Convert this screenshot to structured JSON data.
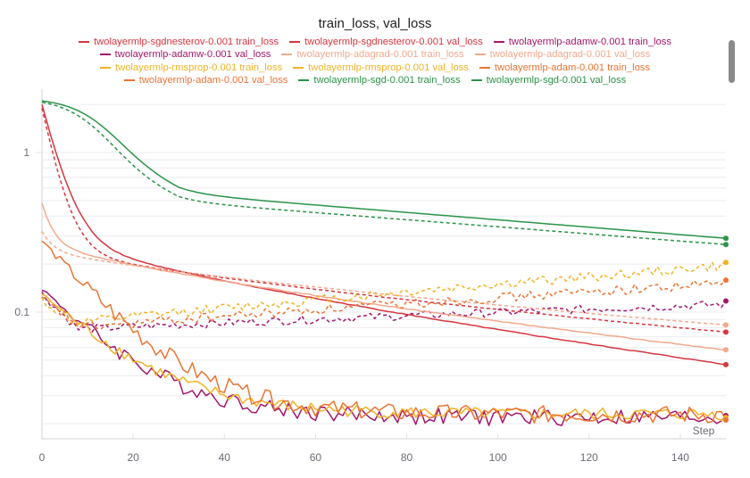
{
  "chart_data": {
    "type": "line",
    "title": "train_loss, val_loss",
    "xlabel": "Step",
    "ylabel": "",
    "yscale": "log",
    "xlim": [
      0,
      150
    ],
    "ylim": [
      0.0165,
      2.2
    ],
    "grid": true,
    "legend_position": "top",
    "x_ticks": [
      0,
      20,
      40,
      60,
      80,
      100,
      120,
      140
    ],
    "x_tick_labels": [
      "0",
      "20",
      "40",
      "60",
      "80",
      "100",
      "120",
      "140"
    ],
    "y_ticks": [
      1,
      0.1
    ],
    "y_tick_labels": [
      "1",
      "0.1"
    ],
    "y_minor_grid": [
      2,
      0.9,
      0.8,
      0.7,
      0.6,
      0.5,
      0.4,
      0.3,
      0.2,
      0.09,
      0.08,
      0.07,
      0.06,
      0.05,
      0.04,
      0.03,
      0.02
    ],
    "series": [
      {
        "name": "twolayermlp-sgdnesterov-0.001 train_loss",
        "color": "#d6363f",
        "dash": false,
        "model": {
          "kind": "decay",
          "start": 2.0,
          "fast": 0.3,
          "fast_tau": 3.5,
          "slow_start": 0.32,
          "slow_end": 0.047,
          "noise": 0.01
        }
      },
      {
        "name": "twolayermlp-sgdnesterov-0.001 val_loss",
        "color": "#d6363f",
        "dash": true,
        "model": {
          "kind": "decay",
          "start": 1.9,
          "fast": 0.28,
          "fast_tau": 3.0,
          "slow_start": 0.26,
          "slow_end": 0.075,
          "noise": 0.005
        }
      },
      {
        "name": "twolayermlp-adamw-0.001 train_loss",
        "color": "#a3166b",
        "dash": false,
        "model": {
          "kind": "noisy_decay",
          "start": 0.14,
          "floor": 0.022,
          "tau": 14,
          "noise": 0.12,
          "seed": 3
        }
      },
      {
        "name": "twolayermlp-adamw-0.001 val_loss",
        "color": "#a3166b",
        "dash": true,
        "model": {
          "kind": "overfit",
          "start": 0.13,
          "min": 0.078,
          "min_at": 8,
          "end": 0.112,
          "noise": 0.06,
          "seed": 5
        }
      },
      {
        "name": "twolayermlp-adagrad-0.001 train_loss",
        "color": "#f2a98c",
        "dash": false,
        "model": {
          "kind": "decay",
          "start": 0.48,
          "fast": 0.18,
          "fast_tau": 2.0,
          "slow_start": 0.28,
          "slow_end": 0.058,
          "noise": 0.012
        }
      },
      {
        "name": "twolayermlp-adagrad-0.001 val_loss",
        "color": "#f2a98c",
        "dash": true,
        "model": {
          "kind": "decay",
          "start": 0.32,
          "fast": 0.07,
          "fast_tau": 2.0,
          "slow_start": 0.25,
          "slow_end": 0.083,
          "noise": 0.004
        }
      },
      {
        "name": "twolayermlp-rmsprop-0.001 train_loss",
        "color": "#f0b323",
        "dash": false,
        "model": {
          "kind": "noisy_decay",
          "start": 0.13,
          "floor": 0.023,
          "tau": 15,
          "noise": 0.09,
          "seed": 7
        }
      },
      {
        "name": "twolayermlp-rmsprop-0.001 val_loss",
        "color": "#f0b323",
        "dash": true,
        "model": {
          "kind": "overfit",
          "start": 0.12,
          "min": 0.085,
          "min_at": 7,
          "end": 0.195,
          "noise": 0.07,
          "seed": 11
        }
      },
      {
        "name": "twolayermlp-adam-0.001 train_loss",
        "color": "#ea7433",
        "dash": false,
        "model": {
          "kind": "noisy_decay",
          "start": 0.28,
          "floor": 0.023,
          "tau": 13,
          "noise": 0.13,
          "seed": 13
        }
      },
      {
        "name": "twolayermlp-adam-0.001 val_loss",
        "color": "#ea7433",
        "dash": true,
        "model": {
          "kind": "overfit",
          "start": 0.12,
          "min": 0.08,
          "min_at": 9,
          "end": 0.152,
          "noise": 0.07,
          "seed": 17
        }
      },
      {
        "name": "twolayermlp-sgd-0.001 train_loss",
        "color": "#2b9348",
        "dash": false,
        "model": {
          "kind": "sigmoid",
          "start": 2.2,
          "mid": 17,
          "width": 5,
          "plateau": 0.55,
          "end": 0.29
        }
      },
      {
        "name": "twolayermlp-sgd-0.001 val_loss",
        "color": "#2b9348",
        "dash": true,
        "model": {
          "kind": "sigmoid",
          "start": 2.2,
          "mid": 15.5,
          "width": 5,
          "plateau": 0.49,
          "end": 0.265
        }
      }
    ]
  }
}
